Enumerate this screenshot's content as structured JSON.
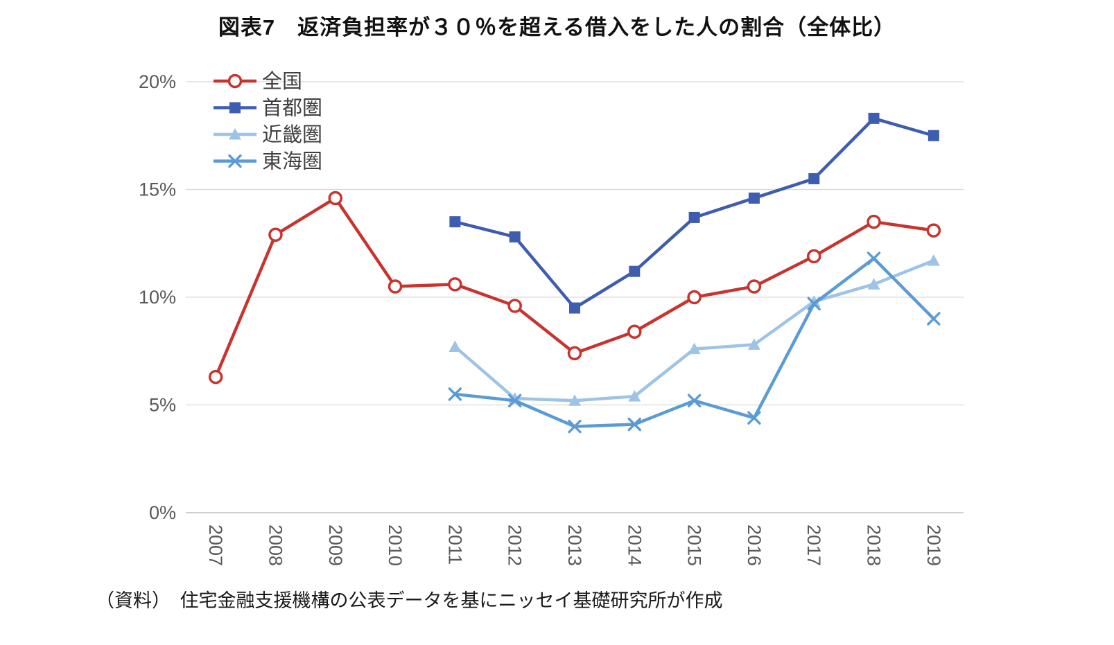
{
  "page": {
    "background": "#FFFFFF"
  },
  "chart_data": {
    "type": "line",
    "title": "図表7　返済負担率が３０％を超える借入をした人の割合（全体比）",
    "source_note": "（資料）　住宅金融支援機構の公表データを基にニッセイ基礎研究所が作成",
    "x": [
      "2007",
      "2008",
      "2009",
      "2010",
      "2011",
      "2012",
      "2013",
      "2014",
      "2015",
      "2016",
      "2017",
      "2018",
      "2019"
    ],
    "ylim": [
      0,
      20
    ],
    "yticks": [
      0,
      5,
      10,
      15,
      20
    ],
    "ytick_suffix": "%",
    "grid": "horizontal",
    "legend_position": "top-left-inside",
    "colors": {
      "grid": "#D9D9D9",
      "axis": "#C0C0C0",
      "axis_text": "#595959",
      "legend_text": "#3F3F3F"
    },
    "series": [
      {
        "name": "全国",
        "key": "zenkoku-national",
        "color": "#C9332E",
        "marker": "circle-open",
        "values": [
          6.3,
          12.9,
          14.6,
          10.5,
          10.6,
          9.6,
          7.4,
          8.4,
          10.0,
          10.5,
          11.9,
          13.5,
          13.1
        ]
      },
      {
        "name": "首都圏",
        "key": "shutoken-tokyo-area",
        "color": "#3E5CB0",
        "marker": "square",
        "values": [
          null,
          null,
          null,
          null,
          13.5,
          12.8,
          9.5,
          11.2,
          13.7,
          14.6,
          15.5,
          18.3,
          17.5
        ]
      },
      {
        "name": "近畿圏",
        "key": "kinki-area",
        "color": "#9DC3E6",
        "marker": "triangle",
        "values": [
          null,
          null,
          null,
          null,
          7.7,
          5.3,
          5.2,
          5.4,
          7.6,
          7.8,
          9.8,
          10.6,
          11.7
        ]
      },
      {
        "name": "東海圏",
        "key": "tokai-area",
        "color": "#5B9BD5",
        "marker": "x",
        "values": [
          null,
          null,
          null,
          null,
          5.5,
          5.2,
          4.0,
          4.1,
          5.2,
          4.4,
          9.7,
          11.8,
          9.0
        ]
      }
    ]
  }
}
